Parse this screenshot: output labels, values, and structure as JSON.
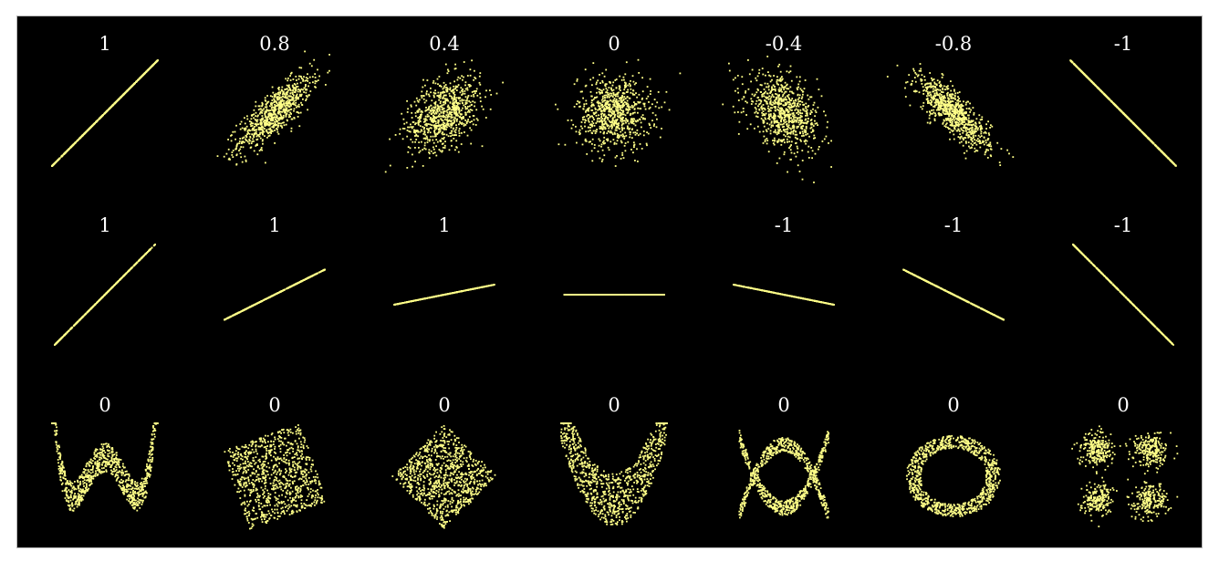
{
  "colors": {
    "background": "#000000",
    "frame": "#b8b8b8",
    "points": "#ffff88",
    "labels": "#ffffff"
  },
  "chart_data": {
    "type": "scatter",
    "grid": false,
    "rows": [
      {
        "kind": "noisy-linear",
        "panels": [
          {
            "label": "1",
            "correlation": 1
          },
          {
            "label": "0.8",
            "correlation": 0.8
          },
          {
            "label": "0.4",
            "correlation": 0.4
          },
          {
            "label": "0",
            "correlation": 0
          },
          {
            "label": "-0.4",
            "correlation": -0.4
          },
          {
            "label": "-0.8",
            "correlation": -0.8
          },
          {
            "label": "-1",
            "correlation": -1
          }
        ]
      },
      {
        "kind": "perfect-linear",
        "panels": [
          {
            "label": "1",
            "correlation": 1,
            "slope": 1.0
          },
          {
            "label": "1",
            "correlation": 1,
            "slope": 0.5
          },
          {
            "label": "1",
            "correlation": 1,
            "slope": 0.2
          },
          {
            "label": "",
            "correlation": null,
            "slope": 0
          },
          {
            "label": "-1",
            "correlation": -1,
            "slope": -0.2
          },
          {
            "label": "-1",
            "correlation": -1,
            "slope": -0.5
          },
          {
            "label": "-1",
            "correlation": -1,
            "slope": -1.0
          }
        ]
      },
      {
        "kind": "nonlinear",
        "panels": [
          {
            "label": "0",
            "correlation": 0,
            "shape": "w-curve"
          },
          {
            "label": "0",
            "correlation": 0,
            "shape": "rotated-square"
          },
          {
            "label": "0",
            "correlation": 0,
            "shape": "diamond"
          },
          {
            "label": "0",
            "correlation": 0,
            "shape": "parabola"
          },
          {
            "label": "0",
            "correlation": 0,
            "shape": "cross-parabolas"
          },
          {
            "label": "0",
            "correlation": 0,
            "shape": "ring"
          },
          {
            "label": "0",
            "correlation": 0,
            "shape": "four-clusters"
          }
        ]
      }
    ]
  }
}
